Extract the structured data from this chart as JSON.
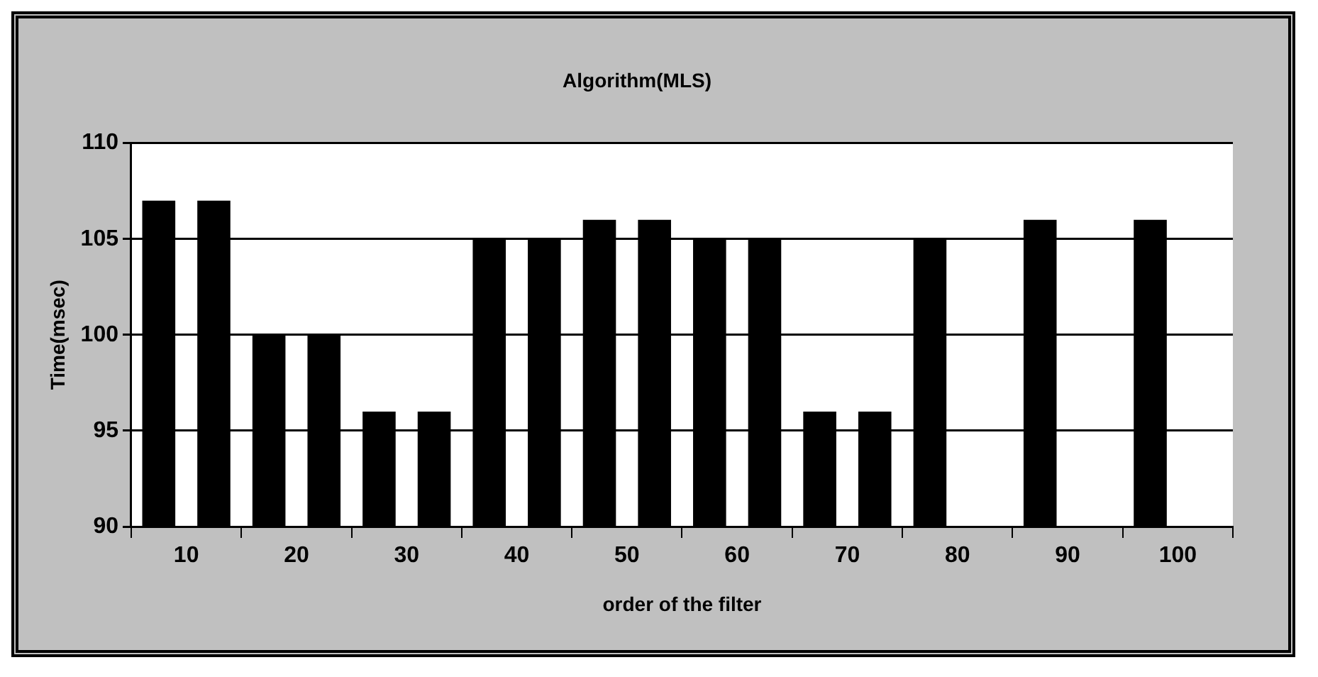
{
  "chart_data": {
    "type": "bar",
    "title": "Algorithm(MLS)",
    "xlabel": "order of the filter",
    "ylabel": "Time(msec)",
    "categories": [
      "10",
      "20",
      "30",
      "40",
      "50",
      "60",
      "70",
      "80",
      "90",
      "100"
    ],
    "series": [
      {
        "color": "#000000",
        "values": [
          107,
          100,
          96,
          105,
          106,
          105,
          96,
          105,
          106,
          106
        ]
      },
      {
        "color": "#000000",
        "values": [
          107,
          100,
          96,
          105,
          106,
          105,
          96,
          null,
          null,
          null
        ]
      }
    ],
    "ylim": [
      90,
      110
    ],
    "yticks": [
      90,
      95,
      100,
      105,
      110
    ],
    "grid": "y",
    "legend": false
  }
}
